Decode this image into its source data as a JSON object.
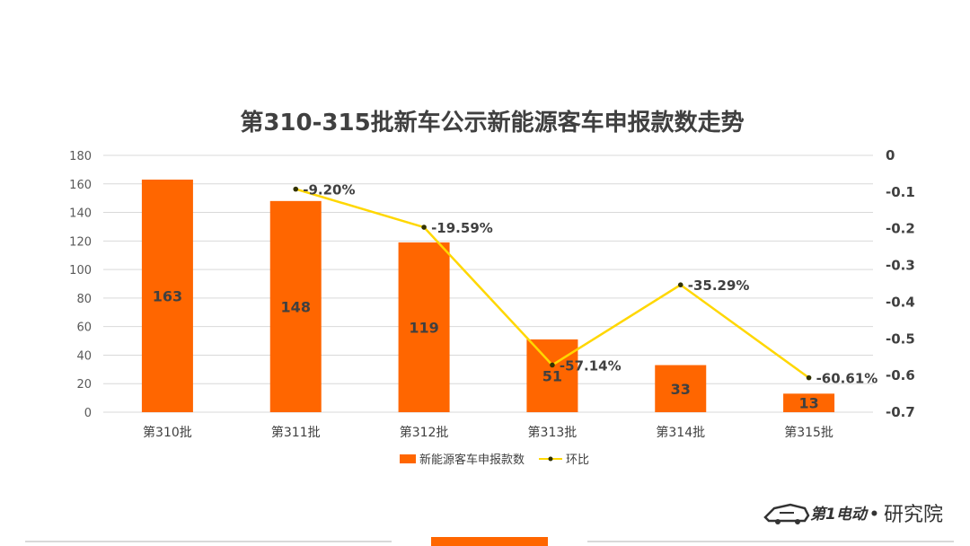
{
  "chart_data": {
    "type": "bar",
    "title": "第310-315批新车公示新能源客车申报款数走势",
    "categories": [
      "第310批",
      "第311批",
      "第312批",
      "第313批",
      "第314批",
      "第315批"
    ],
    "series": [
      {
        "name": "新能源客车申报款数",
        "kind": "bar",
        "axis": "left",
        "color": "#ff6600",
        "values": [
          163,
          148,
          119,
          51,
          33,
          13
        ],
        "labels": [
          "163",
          "148",
          "119",
          "51",
          "33",
          "13"
        ]
      },
      {
        "name": "环比",
        "kind": "line",
        "axis": "right",
        "color": "#ffd700",
        "marker_color": "#333300",
        "values": [
          null,
          -0.092,
          -0.1959,
          -0.5714,
          -0.3529,
          -0.6061
        ],
        "labels": [
          "",
          "-9.20%",
          "-19.59%",
          "-57.14%",
          "-35.29%",
          "-60.61%"
        ]
      }
    ],
    "y_left": {
      "range": [
        0,
        180
      ],
      "ticks": [
        "0",
        "20",
        "40",
        "60",
        "80",
        "100",
        "120",
        "140",
        "160",
        "180"
      ]
    },
    "y_right": {
      "range": [
        -0.7,
        0
      ],
      "ticks": [
        "0",
        "-0.1",
        "-0.2",
        "-0.3",
        "-0.4",
        "-0.5",
        "-0.6",
        "-0.7"
      ]
    },
    "grid": true,
    "legend_position": "bottom"
  },
  "logo": {
    "brand": "第1电动",
    "suffix": "研究院",
    "separator": "•"
  },
  "colors": {
    "bar": "#ff6600",
    "line": "#ffd700",
    "grid": "#d9d9d9",
    "footer_accent": "#ff6600"
  }
}
